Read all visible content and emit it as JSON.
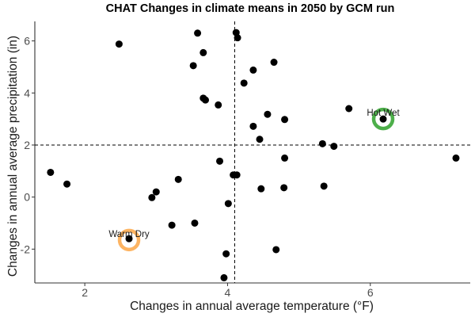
{
  "chart_data": {
    "type": "scatter",
    "title": "CHAT Changes in climate means in 2050 by GCM run",
    "xlabel": "Changes in annual average temperature (°F)",
    "ylabel": "Changes in annual average precipitation (in)",
    "xlim": [
      1.3,
      7.4
    ],
    "ylim": [
      -3.3,
      6.75
    ],
    "xticks": [
      2,
      4,
      6
    ],
    "yticks": [
      -2,
      0,
      2,
      4,
      6
    ],
    "reference_lines": {
      "x": 4.1,
      "y": 2.0,
      "style": "dashed"
    },
    "grid": false,
    "point_color": "#000000",
    "points": [
      {
        "x": 2.48,
        "y": 5.88
      },
      {
        "x": 3.58,
        "y": 6.3
      },
      {
        "x": 4.12,
        "y": 6.32
      },
      {
        "x": 4.14,
        "y": 6.12
      },
      {
        "x": 3.66,
        "y": 5.55
      },
      {
        "x": 3.52,
        "y": 5.05
      },
      {
        "x": 4.36,
        "y": 4.88
      },
      {
        "x": 4.65,
        "y": 5.18
      },
      {
        "x": 4.23,
        "y": 4.38
      },
      {
        "x": 3.66,
        "y": 3.8
      },
      {
        "x": 3.69,
        "y": 3.73
      },
      {
        "x": 3.87,
        "y": 3.54
      },
      {
        "x": 4.56,
        "y": 3.18
      },
      {
        "x": 4.8,
        "y": 2.98
      },
      {
        "x": 4.36,
        "y": 2.72
      },
      {
        "x": 4.45,
        "y": 2.22
      },
      {
        "x": 5.7,
        "y": 3.4
      },
      {
        "x": 5.33,
        "y": 2.05
      },
      {
        "x": 5.49,
        "y": 1.95
      },
      {
        "x": 7.2,
        "y": 1.5
      },
      {
        "x": 4.8,
        "y": 1.5
      },
      {
        "x": 3.89,
        "y": 1.38
      },
      {
        "x": 4.08,
        "y": 0.85
      },
      {
        "x": 4.13,
        "y": 0.85
      },
      {
        "x": 3.31,
        "y": 0.68
      },
      {
        "x": 5.35,
        "y": 0.42
      },
      {
        "x": 4.79,
        "y": 0.36
      },
      {
        "x": 4.47,
        "y": 0.32
      },
      {
        "x": 1.52,
        "y": 0.95
      },
      {
        "x": 1.75,
        "y": 0.5
      },
      {
        "x": 3.0,
        "y": 0.2
      },
      {
        "x": 2.94,
        "y": -0.02
      },
      {
        "x": 4.01,
        "y": -0.25
      },
      {
        "x": 3.22,
        "y": -1.08
      },
      {
        "x": 3.54,
        "y": -1.0
      },
      {
        "x": 2.62,
        "y": -1.6
      },
      {
        "x": 6.18,
        "y": 3.0
      },
      {
        "x": 4.68,
        "y": -2.02
      },
      {
        "x": 3.98,
        "y": -2.18
      },
      {
        "x": 3.95,
        "y": -3.1
      }
    ],
    "annotations": [
      {
        "label": "Hot Wet",
        "x": 6.18,
        "y": 3.0,
        "ring_color": "#4daf4a"
      },
      {
        "label": "Warm Dry",
        "x": 2.62,
        "y": -1.65,
        "ring_color": "#fdb462"
      }
    ]
  }
}
